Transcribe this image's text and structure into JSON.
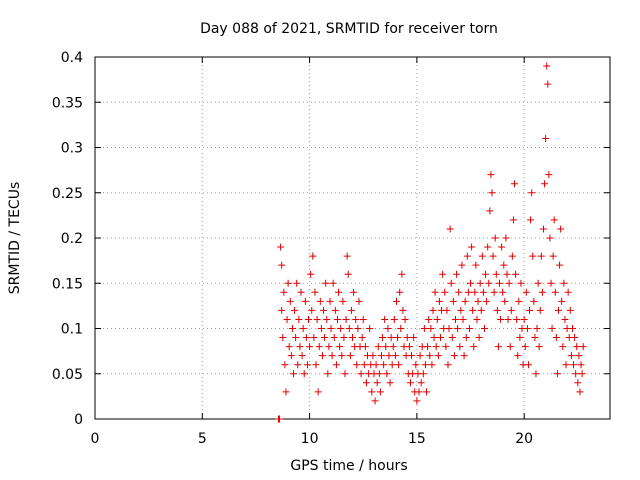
{
  "chart_data": {
    "type": "scatter",
    "title": "Day 088 of 2021, SRMTID for receiver torn",
    "xlabel": "GPS time / hours",
    "ylabel": "SRMTID / TECUs",
    "xlim": [
      0,
      24
    ],
    "ylim": [
      0,
      0.4
    ],
    "xticks": [
      "0",
      "5",
      "10",
      "15",
      "20"
    ],
    "xtick_values": [
      0,
      5,
      10,
      15,
      20
    ],
    "yticks": [
      "0",
      "0.05",
      "0.1",
      "0.15",
      "0.2",
      "0.25",
      "0.3",
      "0.35",
      "0.4"
    ],
    "ytick_values": [
      0,
      0.05,
      0.1,
      0.15,
      0.2,
      0.25,
      0.3,
      0.35,
      0.4
    ],
    "grid": true,
    "marker": "+",
    "color": "#e00000",
    "series": [
      {
        "name": "SRMTID",
        "points": [
          [
            8.55,
            0.0
          ],
          [
            8.6,
            0.0
          ],
          [
            8.65,
            0.19
          ],
          [
            8.7,
            0.17
          ],
          [
            8.7,
            0.12
          ],
          [
            8.75,
            0.09
          ],
          [
            8.8,
            0.14
          ],
          [
            8.85,
            0.06
          ],
          [
            8.9,
            0.03
          ],
          [
            8.95,
            0.11
          ],
          [
            9.0,
            0.15
          ],
          [
            9.05,
            0.08
          ],
          [
            9.1,
            0.13
          ],
          [
            9.15,
            0.07
          ],
          [
            9.2,
            0.1
          ],
          [
            9.25,
            0.05
          ],
          [
            9.3,
            0.12
          ],
          [
            9.35,
            0.09
          ],
          [
            9.4,
            0.15
          ],
          [
            9.45,
            0.06
          ],
          [
            9.5,
            0.11
          ],
          [
            9.55,
            0.08
          ],
          [
            9.6,
            0.14
          ],
          [
            9.65,
            0.07
          ],
          [
            9.7,
            0.1
          ],
          [
            9.75,
            0.05
          ],
          [
            9.8,
            0.13
          ],
          [
            9.85,
            0.09
          ],
          [
            9.9,
            0.06
          ],
          [
            9.95,
            0.11
          ],
          [
            10.0,
            0.08
          ],
          [
            10.05,
            0.16
          ],
          [
            10.1,
            0.12
          ],
          [
            10.15,
            0.18
          ],
          [
            10.2,
            0.09
          ],
          [
            10.25,
            0.14
          ],
          [
            10.3,
            0.06
          ],
          [
            10.35,
            0.11
          ],
          [
            10.4,
            0.03
          ],
          [
            10.45,
            0.08
          ],
          [
            10.5,
            0.13
          ],
          [
            10.55,
            0.1
          ],
          [
            10.6,
            0.07
          ],
          [
            10.65,
            0.12
          ],
          [
            10.7,
            0.09
          ],
          [
            10.75,
            0.15
          ],
          [
            10.8,
            0.11
          ],
          [
            10.85,
            0.05
          ],
          [
            10.9,
            0.08
          ],
          [
            10.95,
            0.13
          ],
          [
            11.0,
            0.1
          ],
          [
            11.05,
            0.07
          ],
          [
            11.1,
            0.15
          ],
          [
            11.15,
            0.09
          ],
          [
            11.2,
            0.12
          ],
          [
            11.25,
            0.06
          ],
          [
            11.3,
            0.11
          ],
          [
            11.35,
            0.14
          ],
          [
            11.4,
            0.08
          ],
          [
            11.45,
            0.1
          ],
          [
            11.5,
            0.07
          ],
          [
            11.55,
            0.13
          ],
          [
            11.6,
            0.09
          ],
          [
            11.65,
            0.05
          ],
          [
            11.7,
            0.11
          ],
          [
            11.75,
            0.18
          ],
          [
            11.8,
            0.16
          ],
          [
            11.85,
            0.1
          ],
          [
            11.9,
            0.07
          ],
          [
            11.95,
            0.12
          ],
          [
            12.0,
            0.09
          ],
          [
            12.05,
            0.14
          ],
          [
            12.1,
            0.08
          ],
          [
            12.15,
            0.11
          ],
          [
            12.2,
            0.06
          ],
          [
            12.25,
            0.1
          ],
          [
            12.3,
            0.13
          ],
          [
            12.35,
            0.08
          ],
          [
            12.4,
            0.05
          ],
          [
            12.45,
            0.09
          ],
          [
            12.5,
            0.11
          ],
          [
            12.55,
            0.06
          ],
          [
            12.6,
            0.08
          ],
          [
            12.65,
            0.04
          ],
          [
            12.7,
            0.07
          ],
          [
            12.75,
            0.05
          ],
          [
            12.8,
            0.1
          ],
          [
            12.85,
            0.06
          ],
          [
            12.9,
            0.03
          ],
          [
            12.95,
            0.07
          ],
          [
            13.0,
            0.05
          ],
          [
            13.05,
            0.02
          ],
          [
            13.1,
            0.06
          ],
          [
            13.15,
            0.04
          ],
          [
            13.2,
            0.08
          ],
          [
            13.25,
            0.05
          ],
          [
            13.3,
            0.03
          ],
          [
            13.35,
            0.07
          ],
          [
            13.4,
            0.09
          ],
          [
            13.45,
            0.06
          ],
          [
            13.5,
            0.11
          ],
          [
            13.55,
            0.08
          ],
          [
            13.6,
            0.05
          ],
          [
            13.65,
            0.1
          ],
          [
            13.7,
            0.07
          ],
          [
            13.75,
            0.04
          ],
          [
            13.8,
            0.09
          ],
          [
            13.85,
            0.06
          ],
          [
            13.9,
            0.08
          ],
          [
            13.95,
            0.11
          ],
          [
            14.0,
            0.07
          ],
          [
            14.05,
            0.13
          ],
          [
            14.1,
            0.09
          ],
          [
            14.15,
            0.06
          ],
          [
            14.2,
            0.14
          ],
          [
            14.25,
            0.1
          ],
          [
            14.3,
            0.16
          ],
          [
            14.35,
            0.12
          ],
          [
            14.4,
            0.08
          ],
          [
            14.45,
            0.11
          ],
          [
            14.5,
            0.07
          ],
          [
            14.55,
            0.09
          ],
          [
            14.6,
            0.05
          ],
          [
            14.65,
            0.08
          ],
          [
            14.7,
            0.04
          ],
          [
            14.75,
            0.07
          ],
          [
            14.8,
            0.05
          ],
          [
            14.85,
            0.09
          ],
          [
            14.9,
            0.03
          ],
          [
            14.95,
            0.06
          ],
          [
            15.0,
            0.02
          ],
          [
            15.05,
            0.05
          ],
          [
            15.1,
            0.03
          ],
          [
            15.15,
            0.07
          ],
          [
            15.2,
            0.04
          ],
          [
            15.25,
            0.08
          ],
          [
            15.3,
            0.05
          ],
          [
            15.35,
            0.1
          ],
          [
            15.4,
            0.06
          ],
          [
            15.45,
            0.03
          ],
          [
            15.5,
            0.08
          ],
          [
            15.55,
            0.11
          ],
          [
            15.6,
            0.07
          ],
          [
            15.65,
            0.1
          ],
          [
            15.7,
            0.06
          ],
          [
            15.75,
            0.12
          ],
          [
            15.8,
            0.09
          ],
          [
            15.85,
            0.14
          ],
          [
            15.9,
            0.08
          ],
          [
            15.95,
            0.11
          ],
          [
            16.0,
            0.07
          ],
          [
            16.05,
            0.13
          ],
          [
            16.1,
            0.09
          ],
          [
            16.15,
            0.12
          ],
          [
            16.2,
            0.16
          ],
          [
            16.25,
            0.1
          ],
          [
            16.3,
            0.14
          ],
          [
            16.35,
            0.08
          ],
          [
            16.4,
            0.12
          ],
          [
            16.45,
            0.06
          ],
          [
            16.5,
            0.1
          ],
          [
            16.55,
            0.21
          ],
          [
            16.6,
            0.15
          ],
          [
            16.65,
            0.09
          ],
          [
            16.7,
            0.13
          ],
          [
            16.75,
            0.07
          ],
          [
            16.8,
            0.11
          ],
          [
            16.85,
            0.16
          ],
          [
            16.9,
            0.1
          ],
          [
            16.95,
            0.14
          ],
          [
            17.0,
            0.08
          ],
          [
            17.05,
            0.12
          ],
          [
            17.1,
            0.17
          ],
          [
            17.15,
            0.11
          ],
          [
            17.2,
            0.07
          ],
          [
            17.25,
            0.13
          ],
          [
            17.3,
            0.09
          ],
          [
            17.35,
            0.18
          ],
          [
            17.4,
            0.14
          ],
          [
            17.45,
            0.1
          ],
          [
            17.5,
            0.15
          ],
          [
            17.55,
            0.19
          ],
          [
            17.6,
            0.12
          ],
          [
            17.65,
            0.08
          ],
          [
            17.7,
            0.14
          ],
          [
            17.75,
            0.17
          ],
          [
            17.8,
            0.11
          ],
          [
            17.85,
            0.13
          ],
          [
            17.9,
            0.09
          ],
          [
            17.95,
            0.15
          ],
          [
            18.0,
            0.12
          ],
          [
            18.05,
            0.18
          ],
          [
            18.1,
            0.14
          ],
          [
            18.15,
            0.1
          ],
          [
            18.2,
            0.16
          ],
          [
            18.25,
            0.13
          ],
          [
            18.3,
            0.19
          ],
          [
            18.35,
            0.15
          ],
          [
            18.4,
            0.23
          ],
          [
            18.45,
            0.27
          ],
          [
            18.5,
            0.25
          ],
          [
            18.55,
            0.18
          ],
          [
            18.6,
            0.14
          ],
          [
            18.65,
            0.2
          ],
          [
            18.7,
            0.16
          ],
          [
            18.75,
            0.12
          ],
          [
            18.8,
            0.08
          ],
          [
            18.85,
            0.15
          ],
          [
            18.9,
            0.11
          ],
          [
            18.95,
            0.19
          ],
          [
            19.0,
            0.14
          ],
          [
            19.05,
            0.17
          ],
          [
            19.1,
            0.13
          ],
          [
            19.15,
            0.2
          ],
          [
            19.2,
            0.16
          ],
          [
            19.25,
            0.11
          ],
          [
            19.3,
            0.15
          ],
          [
            19.35,
            0.08
          ],
          [
            19.4,
            0.12
          ],
          [
            19.45,
            0.18
          ],
          [
            19.5,
            0.22
          ],
          [
            19.55,
            0.26
          ],
          [
            19.6,
            0.16
          ],
          [
            19.65,
            0.11
          ],
          [
            19.7,
            0.07
          ],
          [
            19.75,
            0.13
          ],
          [
            19.8,
            0.09
          ],
          [
            19.85,
            0.15
          ],
          [
            19.9,
            0.1
          ],
          [
            19.95,
            0.06
          ],
          [
            20.0,
            0.11
          ],
          [
            20.05,
            0.08
          ],
          [
            20.1,
            0.14
          ],
          [
            20.15,
            0.1
          ],
          [
            20.2,
            0.06
          ],
          [
            20.25,
            0.12
          ],
          [
            20.3,
            0.22
          ],
          [
            20.35,
            0.25
          ],
          [
            20.4,
            0.18
          ],
          [
            20.45,
            0.13
          ],
          [
            20.5,
            0.09
          ],
          [
            20.55,
            0.05
          ],
          [
            20.6,
            0.1
          ],
          [
            20.65,
            0.15
          ],
          [
            20.7,
            0.08
          ],
          [
            20.75,
            0.12
          ],
          [
            20.8,
            0.18
          ],
          [
            20.85,
            0.14
          ],
          [
            20.9,
            0.21
          ],
          [
            20.95,
            0.26
          ],
          [
            21.0,
            0.31
          ],
          [
            21.05,
            0.39
          ],
          [
            21.1,
            0.37
          ],
          [
            21.15,
            0.27
          ],
          [
            21.2,
            0.2
          ],
          [
            21.25,
            0.15
          ],
          [
            21.3,
            0.1
          ],
          [
            21.35,
            0.18
          ],
          [
            21.4,
            0.22
          ],
          [
            21.45,
            0.14
          ],
          [
            21.5,
            0.09
          ],
          [
            21.55,
            0.05
          ],
          [
            21.6,
            0.12
          ],
          [
            21.65,
            0.17
          ],
          [
            21.7,
            0.21
          ],
          [
            21.75,
            0.13
          ],
          [
            21.8,
            0.08
          ],
          [
            21.85,
            0.15
          ],
          [
            21.9,
            0.11
          ],
          [
            21.95,
            0.06
          ],
          [
            22.0,
            0.1
          ],
          [
            22.05,
            0.14
          ],
          [
            22.1,
            0.09
          ],
          [
            22.15,
            0.12
          ],
          [
            22.2,
            0.07
          ],
          [
            22.25,
            0.1
          ],
          [
            22.3,
            0.06
          ],
          [
            22.35,
            0.09
          ],
          [
            22.4,
            0.05
          ],
          [
            22.45,
            0.08
          ],
          [
            22.5,
            0.04
          ],
          [
            22.55,
            0.07
          ],
          [
            22.6,
            0.03
          ],
          [
            22.65,
            0.06
          ],
          [
            22.7,
            0.05
          ],
          [
            22.75,
            0.08
          ]
        ]
      }
    ]
  }
}
